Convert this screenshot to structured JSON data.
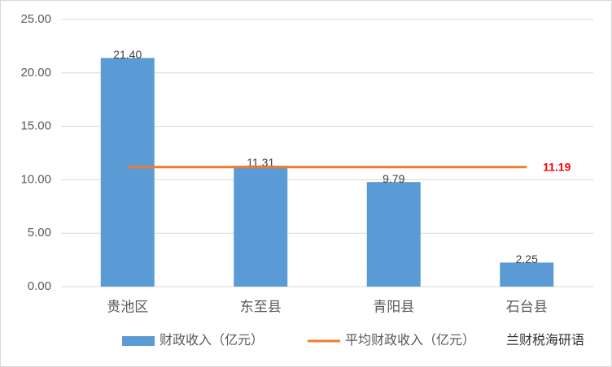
{
  "chart_data": {
    "type": "bar",
    "categories": [
      "贵池区",
      "东至县",
      "青阳县",
      "石台县"
    ],
    "series": [
      {
        "name": "财政收入（亿元）",
        "color": "#5b9bd5",
        "values": [
          21.4,
          11.31,
          9.79,
          2.25
        ],
        "value_labels": [
          "21.40",
          "11.31",
          "9.79",
          "2.25"
        ]
      }
    ],
    "average": {
      "name": "平均财政收入（亿元）",
      "color": "#ed7d31",
      "value": 11.19,
      "label_color": "#ff0000"
    },
    "ylim": [
      0,
      25
    ],
    "yticks": [
      {
        "value": 0,
        "label": "0.00"
      },
      {
        "value": 5,
        "label": "5.00"
      },
      {
        "value": 10,
        "label": "10.00"
      },
      {
        "value": 15,
        "label": "15.00"
      },
      {
        "value": 20,
        "label": "20.00"
      },
      {
        "value": 25,
        "label": "25.00"
      }
    ],
    "grid": true,
    "legend": "bottom",
    "watermark": "兰财税海研语"
  }
}
